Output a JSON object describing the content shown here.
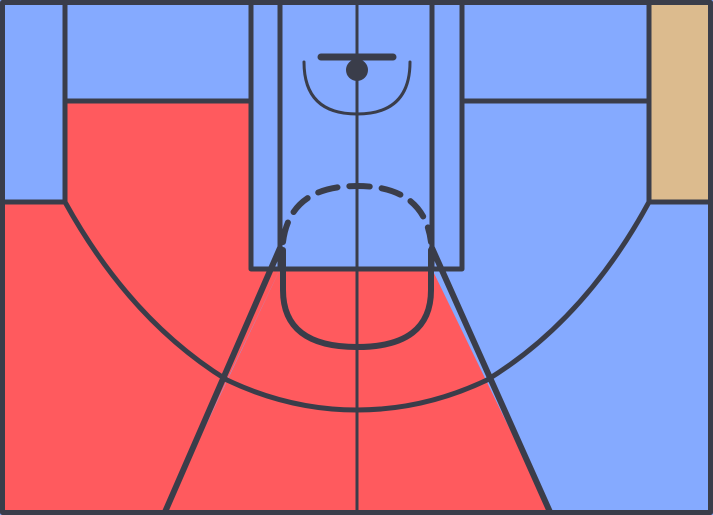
{
  "court": {
    "palette": {
      "blue": "#85aaff",
      "red": "#ff5a5e",
      "tan": "#dcbb8e",
      "line": "#3a3d4a"
    },
    "zones": [
      {
        "name": "zone-left-corner-upper",
        "color": "blue"
      },
      {
        "name": "zone-left-wing-upper",
        "color": "blue"
      },
      {
        "name": "zone-paint",
        "color": "blue"
      },
      {
        "name": "zone-right-wing-upper",
        "color": "blue"
      },
      {
        "name": "zone-right-corner-upper",
        "color": "tan"
      },
      {
        "name": "zone-left-midrange",
        "color": "red"
      },
      {
        "name": "zone-left-corner-three",
        "color": "red"
      },
      {
        "name": "zone-center-lower",
        "color": "red"
      },
      {
        "name": "zone-right-midrange",
        "color": "blue"
      },
      {
        "name": "zone-right-corner-three",
        "color": "blue"
      }
    ]
  }
}
